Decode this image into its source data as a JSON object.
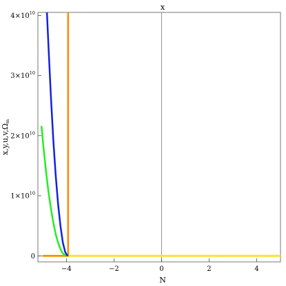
{
  "chart_data": {
    "type": "line",
    "title": "x",
    "xlabel": "N",
    "ylabel": "x,y,u,v,Ω",
    "ylabel_sub": "m",
    "xlim": [
      -5.2,
      5.0
    ],
    "ylim": [
      -1000000000.0,
      40500000000.0
    ],
    "grid": false,
    "frame": true,
    "zero_lines": true,
    "x_ticks": [
      {
        "value": -4,
        "label": "−4"
      },
      {
        "value": -2,
        "label": "−2"
      },
      {
        "value": 0,
        "label": "0"
      },
      {
        "value": 2,
        "label": "2"
      },
      {
        "value": 4,
        "label": "4"
      }
    ],
    "y_ticks": [
      {
        "value": 0,
        "mantissa": "0",
        "base": "",
        "exp": ""
      },
      {
        "value": 10000000000.0,
        "mantissa": "1×10",
        "base": "",
        "exp": "10"
      },
      {
        "value": 20000000000.0,
        "mantissa": "2×10",
        "base": "",
        "exp": "10"
      },
      {
        "value": 30000000000.0,
        "mantissa": "3×10",
        "base": "",
        "exp": "10"
      },
      {
        "value": 40000000000.0,
        "mantissa": "4×10",
        "base": "",
        "exp": "10"
      }
    ],
    "series": [
      {
        "color": "#ffe033",
        "width": 3,
        "x": [
          -5.0,
          5.0
        ],
        "y": [
          0,
          0
        ]
      },
      {
        "color": "#ff8800",
        "width": 2.5,
        "x": [
          -3.93,
          -3.93,
          -3.93,
          -3.93,
          -5.0
        ],
        "y": [
          40500000000.0,
          0,
          0,
          0,
          0
        ]
      },
      {
        "color": "#22ee22",
        "width": 2.5,
        "x": [
          -5.05,
          -4.95,
          -4.85,
          -4.75,
          -4.65,
          -4.55,
          -4.45,
          -4.35,
          -4.25,
          -4.15,
          -4.05,
          -3.95
        ],
        "y": [
          21600000000.0,
          17500000000.0,
          13700000000.0,
          10500000000.0,
          7800000000.0,
          5500000000.0,
          3600000000.0,
          2200000000.0,
          1100000000.0,
          400000000.0,
          100000000.0,
          0
        ]
      },
      {
        "color": "#1122dd",
        "width": 2.5,
        "x": [
          -4.82,
          -4.75,
          -4.65,
          -4.55,
          -4.45,
          -4.35,
          -4.25,
          -4.15,
          -4.05,
          -3.95
        ],
        "y": [
          40500000000.0,
          34500000000.0,
          26200000000.0,
          19200000000.0,
          13300000000.0,
          8600000000.0,
          4900000000.0,
          2200000000.0,
          600000000.0,
          0
        ]
      }
    ]
  }
}
